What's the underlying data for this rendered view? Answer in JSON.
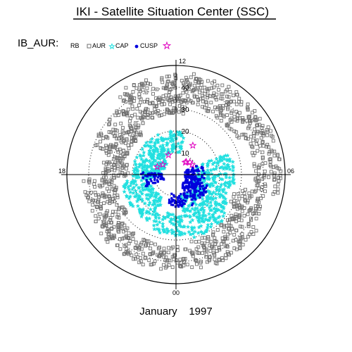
{
  "title": "IKI - Satellite Situation Center (SSC)",
  "subtitle": "January    1997",
  "legend": {
    "label": "IB_AUR:",
    "entries": [
      {
        "name": "RB",
        "symbol": "none",
        "color": "#000000"
      },
      {
        "name": "AUR",
        "symbol": "square",
        "color": "#707070"
      },
      {
        "name": "CAP",
        "symbol": "star",
        "color": "#22e0e0"
      },
      {
        "name": "CUSP",
        "symbol": "dot",
        "color": "#0000dd"
      },
      {
        "name": "",
        "symbol": "magenta-star",
        "color": "#e000c0"
      }
    ]
  },
  "chart_data": {
    "type": "scatter",
    "projection": "polar MLT / invariant latitude (noon at top)",
    "mlt_labels": {
      "top": "12",
      "bottom": "00",
      "left": "18",
      "right": "06"
    },
    "colatitude_rings": [
      10,
      20,
      30,
      40
    ],
    "ring_labels": [
      "10",
      "20",
      "30",
      "40"
    ],
    "outer_circle_colatitude": 50,
    "grid": true,
    "legend_position": "top-left",
    "series": [
      {
        "name": "AUR",
        "color": "#707070",
        "marker": "square",
        "description": "auroral oval band, approx colatitude 28-48 deg from ~19 MLT through noon to ~07 MLT and nightside 22-04 MLT",
        "regions": [
          {
            "mlt": [
              18.8,
              20.2
            ],
            "colat": [
              28,
              42
            ]
          },
          {
            "mlt": [
              20.2,
              23.2
            ],
            "colat": [
              31,
              45
            ]
          },
          {
            "mlt": [
              23.2,
              3.5
            ],
            "colat": [
              33,
              44
            ]
          },
          {
            "mlt": [
              3.5,
              5.8
            ],
            "colat": [
              28,
              43
            ]
          },
          {
            "mlt": [
              5.8,
              7.2
            ],
            "colat": [
              22,
              34
            ]
          },
          {
            "mlt": [
              7.2,
              9.5
            ],
            "colat": [
              24,
              40
            ]
          },
          {
            "mlt": [
              9.5,
              12.5
            ],
            "colat": [
              28,
              46
            ]
          },
          {
            "mlt": [
              12.5,
              16.0
            ],
            "colat": [
              32,
              47
            ]
          },
          {
            "mlt": [
              16.0,
              18.8
            ],
            "colat": [
              36,
              48
            ]
          }
        ]
      },
      {
        "name": "CAP",
        "color": "#22e0e0",
        "marker": "star",
        "description": "polar cap points, dense on dusk side, sparse on dawn side",
        "regions": [
          {
            "mlt": [
              16.5,
              20.5
            ],
            "colat": [
              8,
              27
            ]
          },
          {
            "mlt": [
              20.5,
              23.3
            ],
            "colat": [
              10,
              30
            ]
          },
          {
            "mlt": [
              23.3,
              1.8
            ],
            "colat": [
              18,
              28
            ]
          },
          {
            "mlt": [
              1.8,
              5.5
            ],
            "colat": [
              12,
              25
            ]
          },
          {
            "mlt": [
              5.5,
              9.5
            ],
            "colat": [
              6,
              20
            ]
          },
          {
            "mlt": [
              9.5,
              12.8
            ],
            "colat": [
              10,
              20
            ]
          }
        ]
      },
      {
        "name": "CUSP",
        "color": "#0000dd",
        "marker": "dot",
        "description": "cusp/inner points along dusk-night crescent",
        "regions": [
          {
            "mlt": [
              16.5,
              19.2
            ],
            "colat": [
              4,
              13
            ]
          },
          {
            "mlt": [
              19.2,
              22.3
            ],
            "colat": [
              5,
              16
            ]
          },
          {
            "mlt": [
              22.3,
              1.0
            ],
            "colat": [
              9,
              15
            ]
          },
          {
            "mlt": [
              4.5,
              6.3
            ],
            "colat": [
              6,
              16
            ]
          }
        ]
      },
      {
        "name": "",
        "color": "#e000c0",
        "marker": "magenta-star",
        "points": [
          {
            "mlt": 14.6,
            "colat": 7.5
          },
          {
            "mlt": 15.2,
            "colat": 8.5
          },
          {
            "mlt": 15.9,
            "colat": 8.6
          },
          {
            "mlt": 14.0,
            "colat": 15.4
          },
          {
            "mlt": 10.6,
            "colat": 9.6
          },
          {
            "mlt": 8.5,
            "colat": 7.6
          },
          {
            "mlt": 7.5,
            "colat": 9.3
          },
          {
            "mlt": 14.5,
            "colat": 7.0
          }
        ]
      }
    ]
  }
}
